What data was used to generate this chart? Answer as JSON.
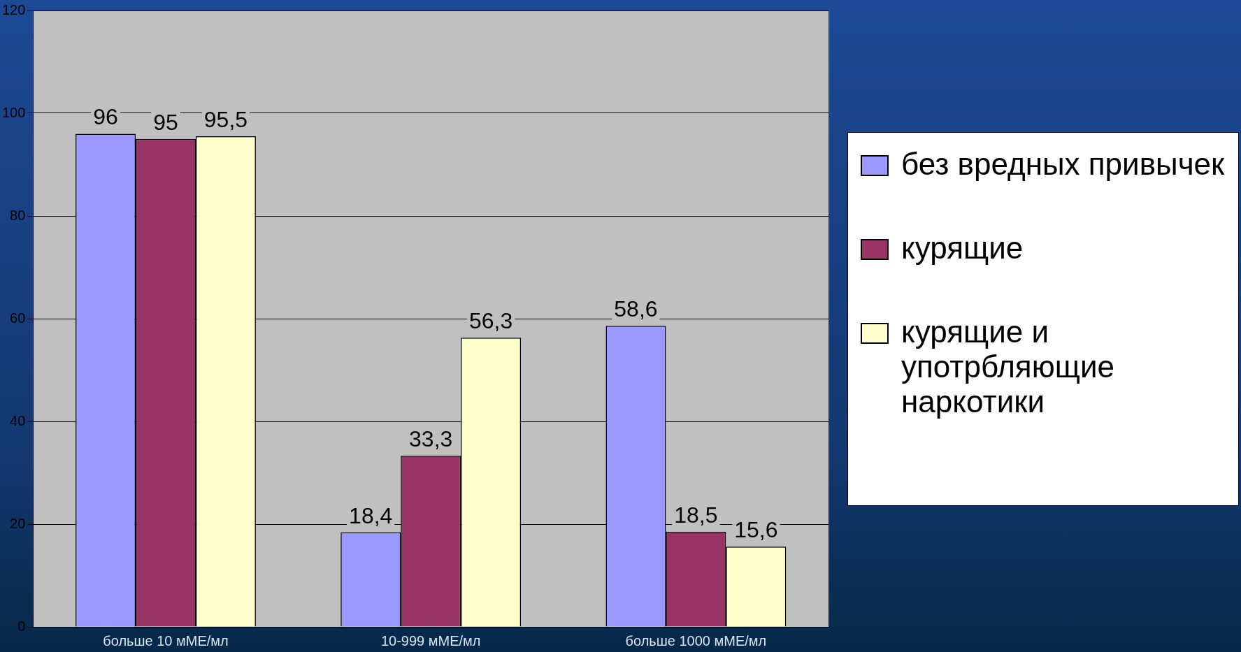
{
  "chart_data": {
    "type": "bar",
    "categories": [
      "больше 10 мМЕ/мл",
      "10-999 мМЕ/мл",
      "больше 1000 мМЕ/мл"
    ],
    "series": [
      {
        "name": "без вредных привычек",
        "color": "#9999ff",
        "values": [
          96,
          18.4,
          58.6
        ],
        "value_labels": [
          "96",
          "18,4",
          "58,6"
        ]
      },
      {
        "name": "курящие",
        "color": "#993366",
        "values": [
          95,
          33.3,
          18.5
        ],
        "value_labels": [
          "95",
          "33,3",
          "18,5"
        ]
      },
      {
        "name": "курящие и употрбляющие наркотики",
        "color": "#ffffcc",
        "values": [
          95.5,
          56.3,
          15.6
        ],
        "value_labels": [
          "95,5",
          "56,3",
          "15,6"
        ]
      }
    ],
    "ylim": [
      0,
      120
    ],
    "yticks": [
      0,
      20,
      40,
      60,
      80,
      100,
      120
    ],
    "grid": "y",
    "legend": "right"
  }
}
